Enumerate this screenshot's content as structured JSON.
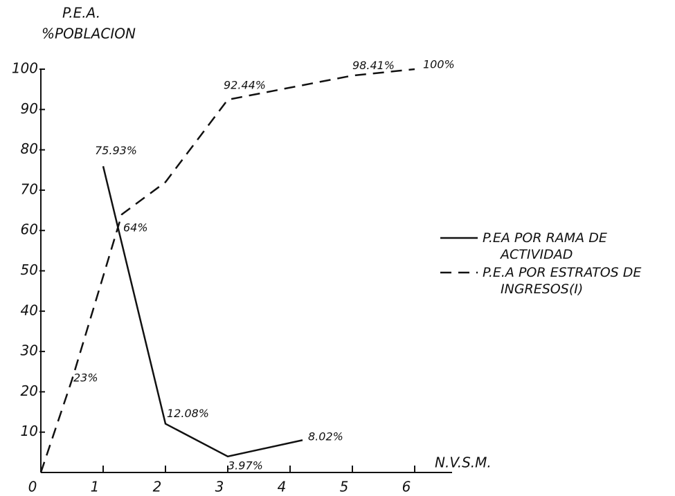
{
  "chart_data": {
    "type": "line",
    "y_label_lines": [
      "P.E.A.",
      "%POBLACION"
    ],
    "x_label": "N.V.S.M.",
    "xlim": [
      0,
      6.6
    ],
    "xticks": [
      0,
      1,
      2,
      3,
      4,
      5,
      6
    ],
    "ylim": [
      0,
      100
    ],
    "yticks": [
      10,
      20,
      30,
      40,
      50,
      60,
      70,
      80,
      90,
      100
    ],
    "grid": false,
    "legend": "right",
    "series": [
      {
        "name": "P.EA POR RAMA DE ACTIVIDAD",
        "color": "#111111",
        "dash": false,
        "x": [
          1,
          2,
          3,
          4.2
        ],
        "values": [
          75.93,
          12.08,
          3.97,
          8.02
        ],
        "value_labels": [
          "75.93%",
          "12.08%",
          "3.97%",
          "8.02%"
        ]
      },
      {
        "name": "P.E.A POR ESTRATOS DE INGRESOS(I)",
        "color": "#111111",
        "dash": true,
        "x": [
          0,
          0.5,
          1.3,
          2,
          3,
          5,
          6
        ],
        "values": [
          0,
          23,
          64,
          72,
          92.44,
          98.41,
          100
        ],
        "value_labels": [
          null,
          "23%",
          "64%",
          null,
          "92.44%",
          "98.41%",
          "100%"
        ]
      }
    ]
  }
}
